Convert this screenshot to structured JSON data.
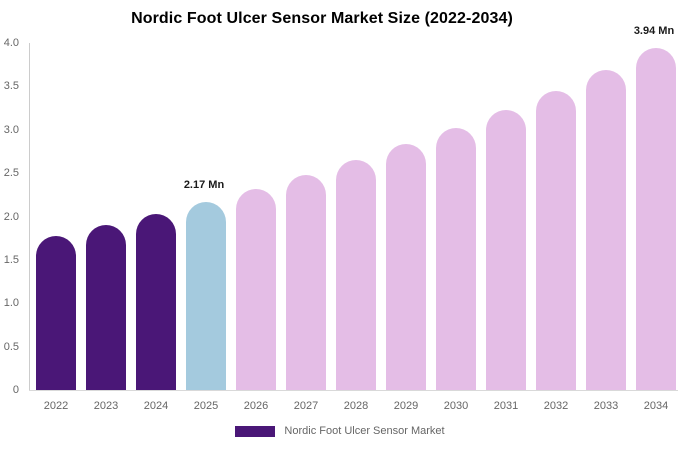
{
  "title": "Nordic Foot Ulcer Sensor Market Size (2022-2034)",
  "legend": {
    "label": "Nordic Foot Ulcer Sensor Market",
    "swatch_color": "#4a1777"
  },
  "colors": {
    "historical_bar": "#4a1777",
    "base_year_bar": "#a4cade",
    "forecast_bar": "#e4bde6",
    "axis_line": "#cccccc",
    "tick_text": "#666666",
    "data_label_text": "#1a1a1a",
    "background": "#ffffff"
  },
  "chart_data": {
    "type": "bar",
    "title": "Nordic Foot Ulcer Sensor Market Size (2022-2034)",
    "categories": [
      "2022",
      "2023",
      "2024",
      "2025",
      "2026",
      "2027",
      "2028",
      "2029",
      "2030",
      "2031",
      "2032",
      "2033",
      "2034"
    ],
    "values": [
      1.78,
      1.9,
      2.03,
      2.17,
      2.32,
      2.48,
      2.65,
      2.83,
      3.02,
      3.23,
      3.45,
      3.69,
      3.94
    ],
    "bar_roles": [
      "historical",
      "historical",
      "historical",
      "base_year",
      "forecast",
      "forecast",
      "forecast",
      "forecast",
      "forecast",
      "forecast",
      "forecast",
      "forecast",
      "forecast"
    ],
    "unit": "Mn",
    "xlabel": "",
    "ylabel": "",
    "ylim": [
      0,
      4.0
    ],
    "yticks": [
      0,
      0.5,
      1.0,
      1.5,
      2.0,
      2.5,
      3.0,
      3.5,
      4.0
    ],
    "ytick_labels": [
      "0",
      "0.5",
      "1.0",
      "1.5",
      "2.0",
      "2.5",
      "3.0",
      "3.5",
      "4.0"
    ],
    "grid": false,
    "legend_position": "bottom",
    "data_labels": [
      {
        "category": "2025",
        "label": "2.17 Mn"
      },
      {
        "category": "2034",
        "label": "3.94 Mn"
      }
    ]
  }
}
